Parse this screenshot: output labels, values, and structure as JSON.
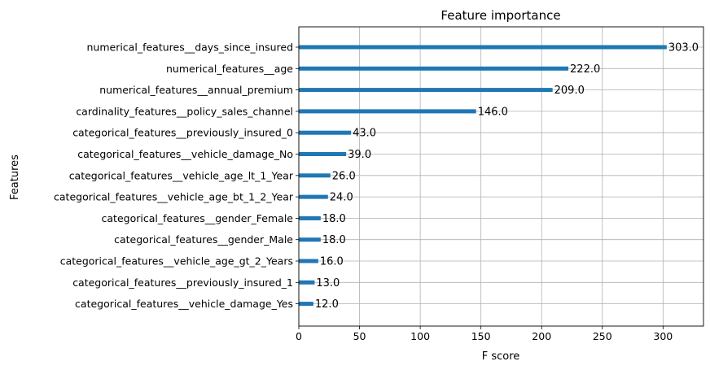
{
  "chart_data": {
    "type": "bar",
    "orientation": "horizontal",
    "title": "Feature importance",
    "xlabel": "F score",
    "ylabel": "Features",
    "xlim": [
      0,
      333.3
    ],
    "xticks": [
      0,
      50,
      100,
      150,
      200,
      250,
      300
    ],
    "grid": true,
    "bar_color": "#1f77b4",
    "categories": [
      "numerical_features__days_since_insured",
      "numerical_features__age",
      "numerical_features__annual_premium",
      "cardinality_features__policy_sales_channel",
      "categorical_features__previously_insured_0",
      "categorical_features__vehicle_damage_No",
      "categorical_features__vehicle_age_lt_1_Year",
      "categorical_features__vehicle_age_bt_1_2_Year",
      "categorical_features__gender_Female",
      "categorical_features__gender_Male",
      "categorical_features__vehicle_age_gt_2_Years",
      "categorical_features__previously_insured_1",
      "categorical_features__vehicle_damage_Yes"
    ],
    "values": [
      303.0,
      222.0,
      209.0,
      146.0,
      43.0,
      39.0,
      26.0,
      24.0,
      18.0,
      18.0,
      16.0,
      13.0,
      12.0
    ],
    "data_labels": [
      "303.0",
      "222.0",
      "209.0",
      "146.0",
      "43.0",
      "39.0",
      "26.0",
      "24.0",
      "18.0",
      "18.0",
      "16.0",
      "13.0",
      "12.0"
    ]
  }
}
